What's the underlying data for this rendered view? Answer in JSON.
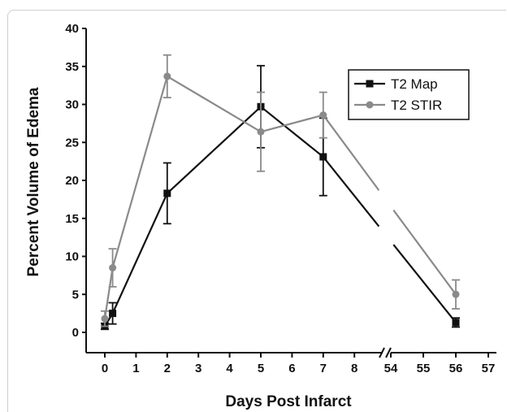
{
  "chart_data": {
    "type": "line",
    "xlabel": "Days Post Infarct",
    "ylabel": "Percent Volume of Edema",
    "ylim": [
      0,
      40
    ],
    "y_ticks": [
      0,
      5,
      10,
      15,
      20,
      25,
      30,
      35,
      40
    ],
    "x_ticks_low": [
      0,
      1,
      2,
      3,
      4,
      5,
      6,
      7,
      8
    ],
    "x_ticks_high": [
      54,
      55,
      56,
      57
    ],
    "axis_break": "between 8 and 54",
    "legend_position": "top-right",
    "series": [
      {
        "name": "T2 Map",
        "color": "#111111",
        "marker": "square",
        "points": [
          {
            "x": 0,
            "y": 0.8,
            "err": 0.4
          },
          {
            "x": 0.25,
            "y": 2.5,
            "err": 1.4
          },
          {
            "x": 2,
            "y": 18.3,
            "err": 4.0
          },
          {
            "x": 5,
            "y": 29.7,
            "err": 5.4
          },
          {
            "x": 7,
            "y": 23.1,
            "err": 5.1
          },
          {
            "x": 56,
            "y": 1.3,
            "err": 0.6
          }
        ]
      },
      {
        "name": "T2 STIR",
        "color": "#8a8a8a",
        "marker": "circle",
        "points": [
          {
            "x": 0,
            "y": 1.8,
            "err": 1.0
          },
          {
            "x": 0.25,
            "y": 8.5,
            "err": 2.5
          },
          {
            "x": 2,
            "y": 33.7,
            "err": 2.8
          },
          {
            "x": 5,
            "y": 26.4,
            "err": 5.2
          },
          {
            "x": 7,
            "y": 28.6,
            "err": 3.0
          },
          {
            "x": 56,
            "y": 5.0,
            "err": 1.9
          }
        ]
      }
    ]
  }
}
